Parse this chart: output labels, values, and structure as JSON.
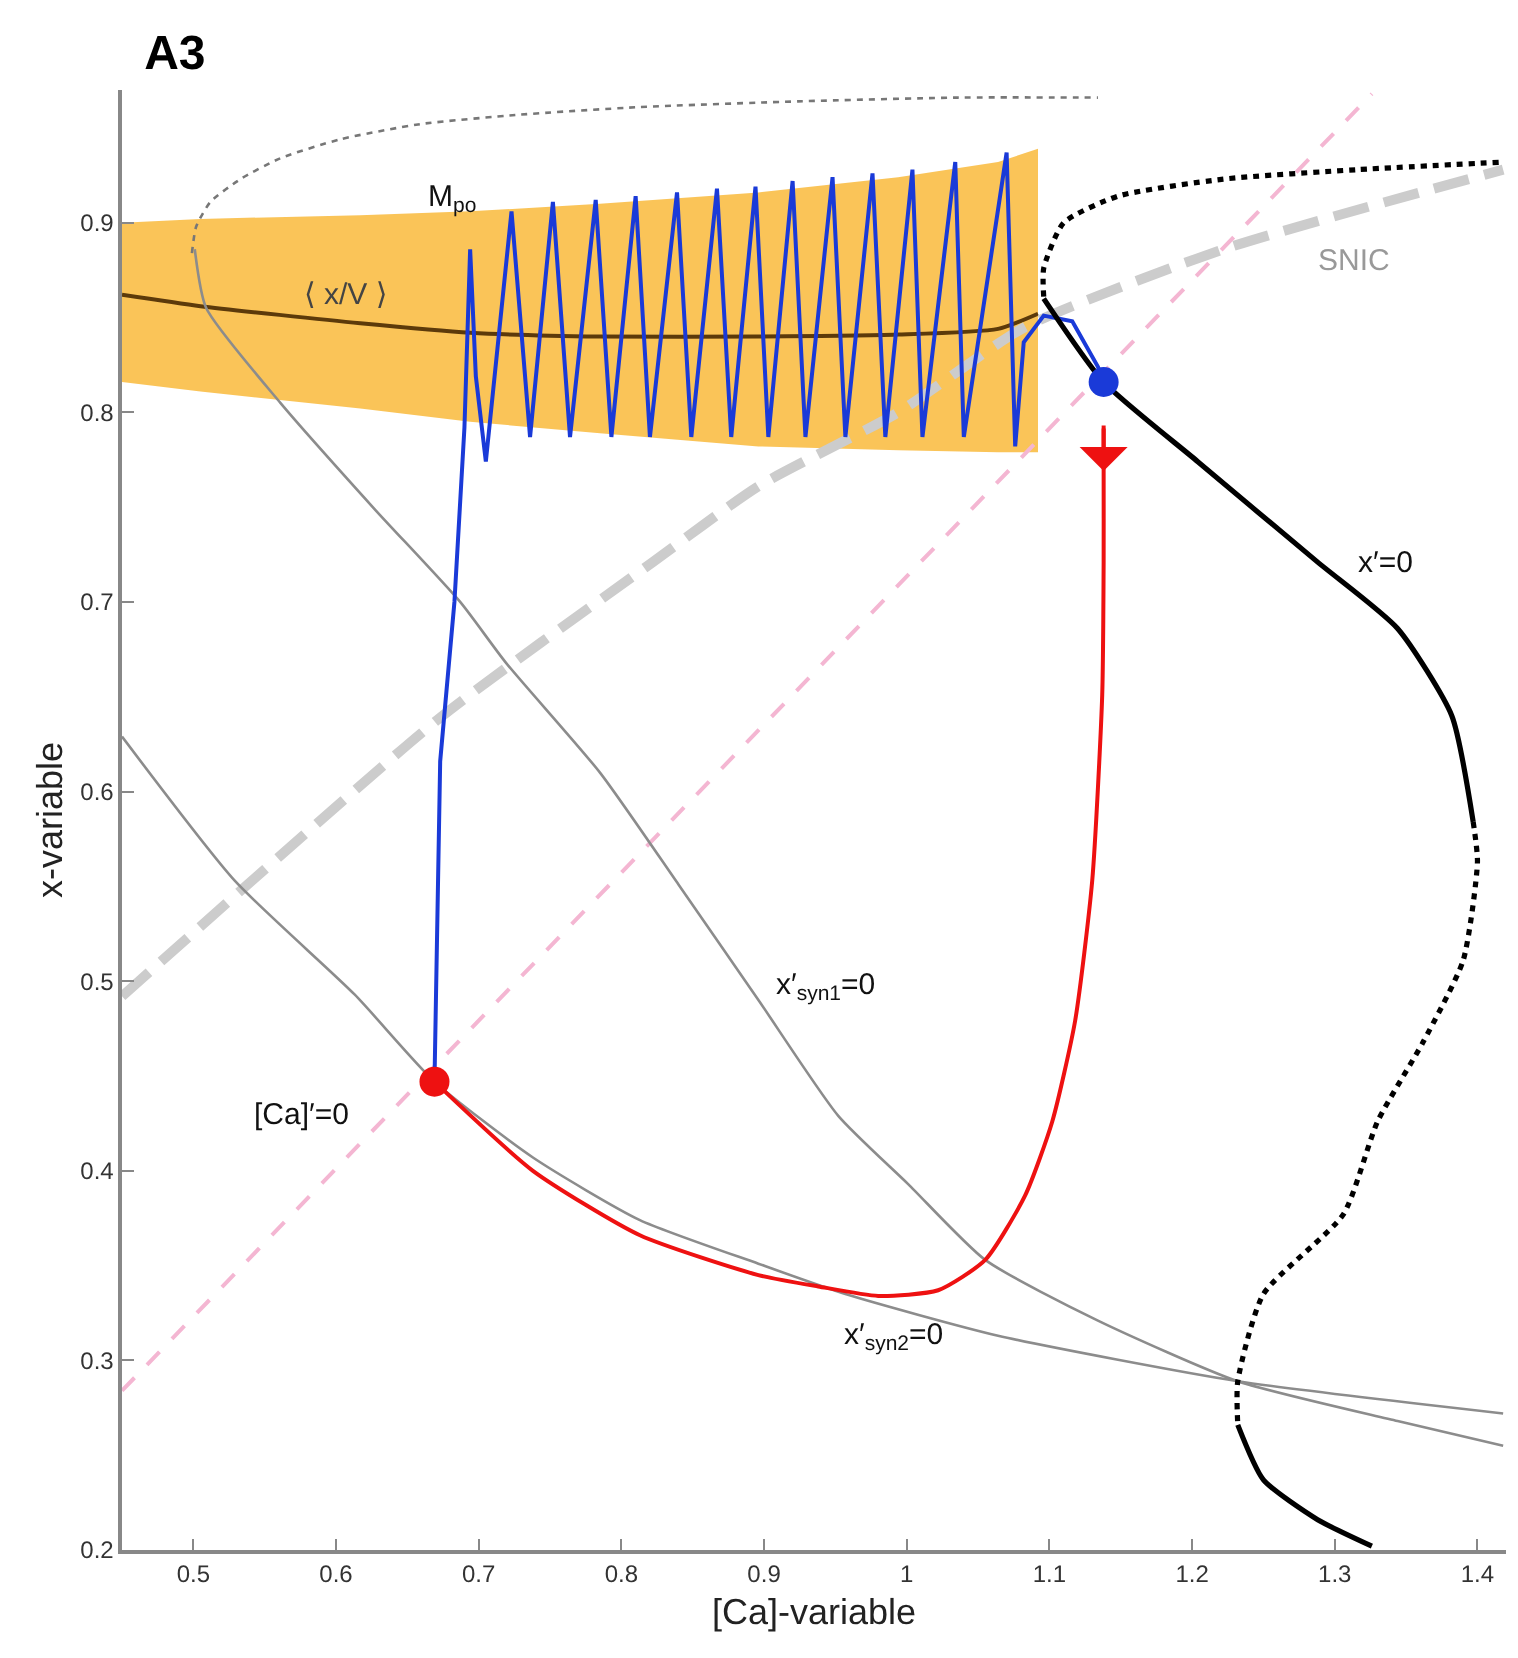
{
  "chart_data": {
    "type": "line",
    "title": "A3",
    "xlabel": "[Ca]-variable",
    "ylabel": "x-variable",
    "xlim": [
      0.45,
      1.42
    ],
    "xticks": [
      0.5,
      0.6,
      0.7,
      0.8,
      0.9,
      1,
      1.1,
      1.2,
      1.3,
      1.4
    ],
    "ylim": [
      0.2,
      0.97
    ],
    "yticks": [
      0.2,
      0.3,
      0.4,
      0.5,
      0.6,
      0.7,
      0.8,
      0.9
    ],
    "grid": false,
    "series": [
      {
        "type": "line",
        "color": "#5c3a0a",
        "x": [
          0.45,
          0.505,
          0.617,
          0.694,
          0.785,
          0.896,
          0.994,
          1.064,
          1.092
        ],
        "values": [
          0.862,
          0.856,
          0.847,
          0.842,
          0.84,
          0.84,
          0.841,
          0.844,
          0.852
        ],
        "lower": [
          0.816,
          0.811,
          0.802,
          0.795,
          0.789,
          0.782,
          0.78,
          0.779,
          0.779
        ],
        "upper": [
          0.9,
          0.902,
          0.904,
          0.906,
          0.91,
          0.916,
          0.924,
          0.932,
          0.939
        ]
      },
      {
        "type": "line",
        "color": "#777777",
        "line_style": "dotted",
        "x": [
          0.499,
          0.502,
          0.512,
          0.533,
          0.561,
          0.603,
          0.659,
          0.729,
          0.813,
          0.924,
          1.036,
          1.134
        ],
        "values": [
          0.884,
          0.898,
          0.911,
          0.923,
          0.934,
          0.944,
          0.952,
          0.957,
          0.961,
          0.964,
          0.966,
          0.966
        ]
      },
      {
        "type": "line",
        "color": "#cccccc",
        "line_style": "dashed",
        "x": [
          0.45,
          0.673,
          0.822,
          0.896,
          0.994,
          1.083,
          1.222,
          1.418
        ],
        "values": [
          0.492,
          0.639,
          0.721,
          0.761,
          0.8,
          0.845,
          0.886,
          0.928
        ]
      },
      {
        "type": "line",
        "color": "#f4b6d2",
        "line_style": "dashed",
        "x": [
          0.45,
          1.326
        ],
        "values": [
          0.284,
          0.968
        ]
      },
      {
        "type": "line",
        "color": "#8c8c8c",
        "x": [
          0.501,
          0.509,
          0.561,
          0.627,
          0.687,
          0.719,
          0.785,
          0.84,
          0.897,
          0.952,
          1.001,
          1.055,
          1.134,
          1.232,
          1.344,
          1.418
        ],
        "values": [
          0.886,
          0.855,
          0.805,
          0.749,
          0.7,
          0.668,
          0.61,
          0.551,
          0.489,
          0.429,
          0.393,
          0.353,
          0.321,
          0.289,
          0.268,
          0.255
        ]
      },
      {
        "type": "line",
        "color": "#8c8c8c",
        "x": [
          0.45,
          0.529,
          0.613,
          0.669,
          0.738,
          0.813,
          0.896,
          0.957,
          1.064,
          1.232,
          1.418
        ],
        "values": [
          0.629,
          0.553,
          0.493,
          0.447,
          0.407,
          0.374,
          0.351,
          0.335,
          0.313,
          0.289,
          0.272
        ]
      },
      {
        "type": "line",
        "color": "#1a3ad8",
        "x": [
          0.669,
          0.673,
          0.683,
          0.69,
          0.694,
          0.698,
          0.705,
          0.723,
          0.736,
          0.752,
          0.764,
          0.782,
          0.793,
          0.81,
          0.82,
          0.839,
          0.849,
          0.867,
          0.877,
          0.894,
          0.903,
          0.92,
          0.929,
          0.948,
          0.957,
          0.976,
          0.985,
          1.004,
          1.011,
          1.034,
          1.04,
          1.07,
          1.076,
          1.082,
          1.096,
          1.116,
          1.134,
          1.138
        ],
        "values": [
          0.447,
          0.616,
          0.7,
          0.792,
          0.886,
          0.819,
          0.774,
          0.906,
          0.787,
          0.911,
          0.787,
          0.912,
          0.787,
          0.914,
          0.787,
          0.916,
          0.787,
          0.918,
          0.787,
          0.919,
          0.787,
          0.922,
          0.787,
          0.924,
          0.787,
          0.926,
          0.787,
          0.928,
          0.787,
          0.932,
          0.787,
          0.937,
          0.782,
          0.837,
          0.851,
          0.848,
          0.824,
          0.816
        ]
      },
      {
        "type": "line",
        "color": "#ee1111",
        "x": [
          1.138,
          1.138,
          1.138,
          1.137,
          1.13,
          1.118,
          1.102,
          1.083,
          1.055,
          1.022,
          0.98,
          0.938,
          0.896,
          0.813,
          0.738,
          0.669
        ],
        "values": [
          0.793,
          0.769,
          0.721,
          0.651,
          0.553,
          0.479,
          0.426,
          0.387,
          0.353,
          0.337,
          0.334,
          0.339,
          0.345,
          0.366,
          0.4,
          0.447
        ]
      },
      {
        "type": "line",
        "color": "#000000",
        "x": [
          1.096,
          1.138,
          1.204,
          1.288,
          1.344,
          1.382,
          1.397
        ],
        "values": [
          0.86,
          0.816,
          0.774,
          0.721,
          0.686,
          0.64,
          0.584
        ]
      },
      {
        "type": "line",
        "color": "#000000",
        "line_style": "dotted",
        "x": [
          1.397,
          1.4,
          1.39,
          1.362,
          1.33,
          1.306,
          1.25,
          1.232,
          1.232
        ],
        "values": [
          0.584,
          0.563,
          0.511,
          0.468,
          0.426,
          0.377,
          0.335,
          0.289,
          0.266
        ]
      },
      {
        "type": "line",
        "color": "#000000",
        "x": [
          1.232,
          1.25,
          1.288,
          1.326
        ],
        "values": [
          0.266,
          0.237,
          0.216,
          0.202
        ]
      },
      {
        "type": "line",
        "color": "#000000",
        "line_style": "dotted",
        "x": [
          1.096,
          1.096,
          1.11,
          1.148,
          1.222,
          1.316,
          1.418
        ],
        "values": [
          0.861,
          0.876,
          0.9,
          0.914,
          0.923,
          0.928,
          0.932
        ]
      },
      {
        "type": "scatter",
        "marker": "circle",
        "colors": [
          "#ee1111",
          "#1a3ad8"
        ],
        "x": [
          0.669,
          1.138
        ],
        "values": [
          0.447,
          0.816
        ]
      }
    ],
    "annotations": [
      "M$_{po}$",
      "⟨ x/V ⟩",
      "SNIC",
      "x′=0",
      "x′$_{syn1}$=0",
      "x′$_{syn2}$=0",
      "[Ca]′=0"
    ]
  }
}
